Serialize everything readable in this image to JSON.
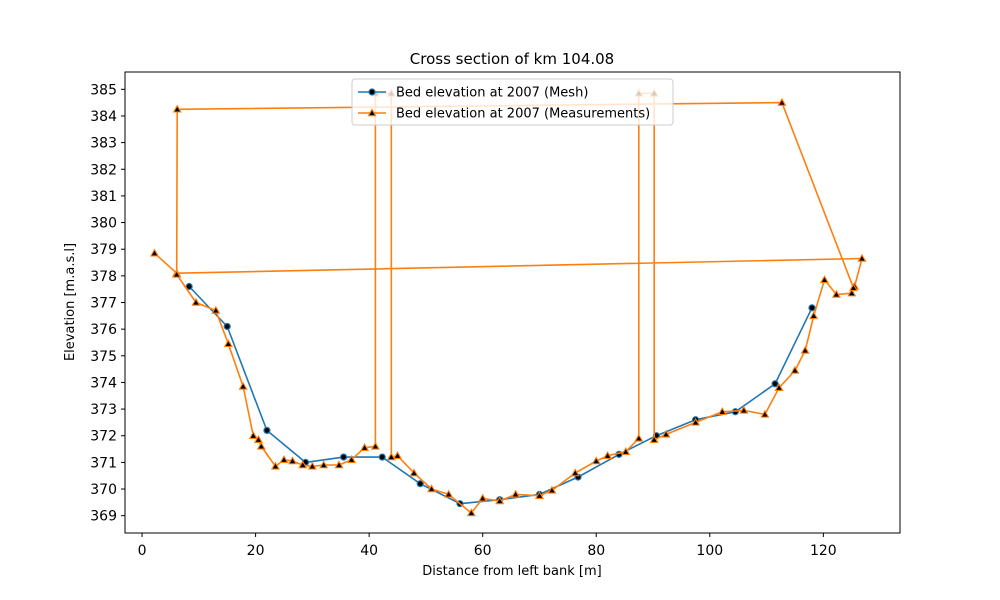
{
  "chart_data": {
    "type": "line",
    "title": "Cross section of km 104.08",
    "xlabel": "Distance from left bank [m]",
    "ylabel": "Elevation [m.a.s.l]",
    "xlim": [
      -3,
      133.5
    ],
    "ylim": [
      368.35,
      385.65
    ],
    "xticks": [
      0,
      20,
      40,
      60,
      80,
      100,
      120
    ],
    "yticks": [
      369,
      370,
      371,
      372,
      373,
      374,
      375,
      376,
      377,
      378,
      379,
      380,
      381,
      382,
      383,
      384,
      385
    ],
    "grid": false,
    "legend_position": "top-center",
    "series": [
      {
        "name": "Bed elevation at 2007 (Mesh)",
        "color": "#1f77b4",
        "marker": "circle",
        "points": [
          [
            8.3,
            377.6
          ],
          [
            15.0,
            376.1
          ],
          [
            22.0,
            372.2
          ],
          [
            28.8,
            371.0
          ],
          [
            35.5,
            371.2
          ],
          [
            42.3,
            371.2
          ],
          [
            49.0,
            370.2
          ],
          [
            56.0,
            369.45
          ],
          [
            63.0,
            369.6
          ],
          [
            70.0,
            369.8
          ],
          [
            76.8,
            370.45
          ],
          [
            84.0,
            371.3
          ],
          [
            90.6,
            372.0
          ],
          [
            97.5,
            372.6
          ],
          [
            104.5,
            372.9
          ],
          [
            111.5,
            373.95
          ],
          [
            118.0,
            376.8
          ]
        ]
      },
      {
        "name": "Bed elevation at 2007 (Measurements)",
        "color": "#ff7f0e",
        "marker": "triangle",
        "points": [
          [
            2.2,
            378.85
          ],
          [
            6.1,
            378.1
          ],
          [
            126.8,
            378.65
          ],
          [
            125.5,
            377.6
          ],
          [
            125.0,
            377.35
          ],
          [
            122.3,
            377.3
          ],
          [
            120.2,
            377.85
          ],
          [
            118.3,
            376.5
          ],
          [
            116.8,
            375.2
          ],
          [
            115.0,
            374.45
          ],
          [
            112.2,
            373.8
          ],
          [
            109.7,
            372.8
          ],
          [
            106.0,
            372.95
          ],
          [
            102.2,
            372.9
          ],
          [
            97.5,
            372.5
          ],
          [
            92.3,
            372.05
          ],
          [
            90.2,
            371.85
          ],
          [
            90.2,
            384.85
          ],
          [
            87.5,
            384.85
          ],
          [
            87.5,
            371.9
          ],
          [
            85.2,
            371.4
          ],
          [
            82.0,
            371.25
          ],
          [
            80.0,
            371.05
          ],
          [
            76.3,
            370.6
          ],
          [
            72.2,
            369.95
          ],
          [
            70.0,
            369.75
          ],
          [
            65.8,
            369.8
          ],
          [
            63.0,
            369.55
          ],
          [
            60.0,
            369.65
          ],
          [
            58.0,
            369.1
          ],
          [
            54.0,
            369.8
          ],
          [
            51.0,
            370.0
          ],
          [
            47.9,
            370.6
          ],
          [
            45.0,
            371.25
          ],
          [
            43.9,
            371.2
          ],
          [
            43.9,
            384.85
          ],
          [
            41.1,
            384.85
          ],
          [
            41.1,
            371.6
          ],
          [
            39.2,
            371.55
          ],
          [
            36.9,
            371.1
          ],
          [
            34.7,
            370.9
          ],
          [
            32.0,
            370.9
          ],
          [
            30.0,
            370.85
          ],
          [
            28.3,
            370.9
          ],
          [
            26.5,
            371.05
          ],
          [
            25.0,
            371.1
          ],
          [
            23.5,
            370.85
          ],
          [
            21.0,
            371.6
          ],
          [
            20.5,
            371.85
          ],
          [
            19.6,
            372.0
          ],
          [
            17.8,
            373.85
          ],
          [
            15.2,
            375.45
          ],
          [
            13.0,
            376.7
          ],
          [
            9.5,
            377.0
          ],
          [
            6.1,
            378.05
          ],
          [
            6.2,
            384.25
          ],
          [
            112.7,
            384.5
          ],
          [
            125.3,
            377.55
          ]
        ]
      }
    ]
  }
}
